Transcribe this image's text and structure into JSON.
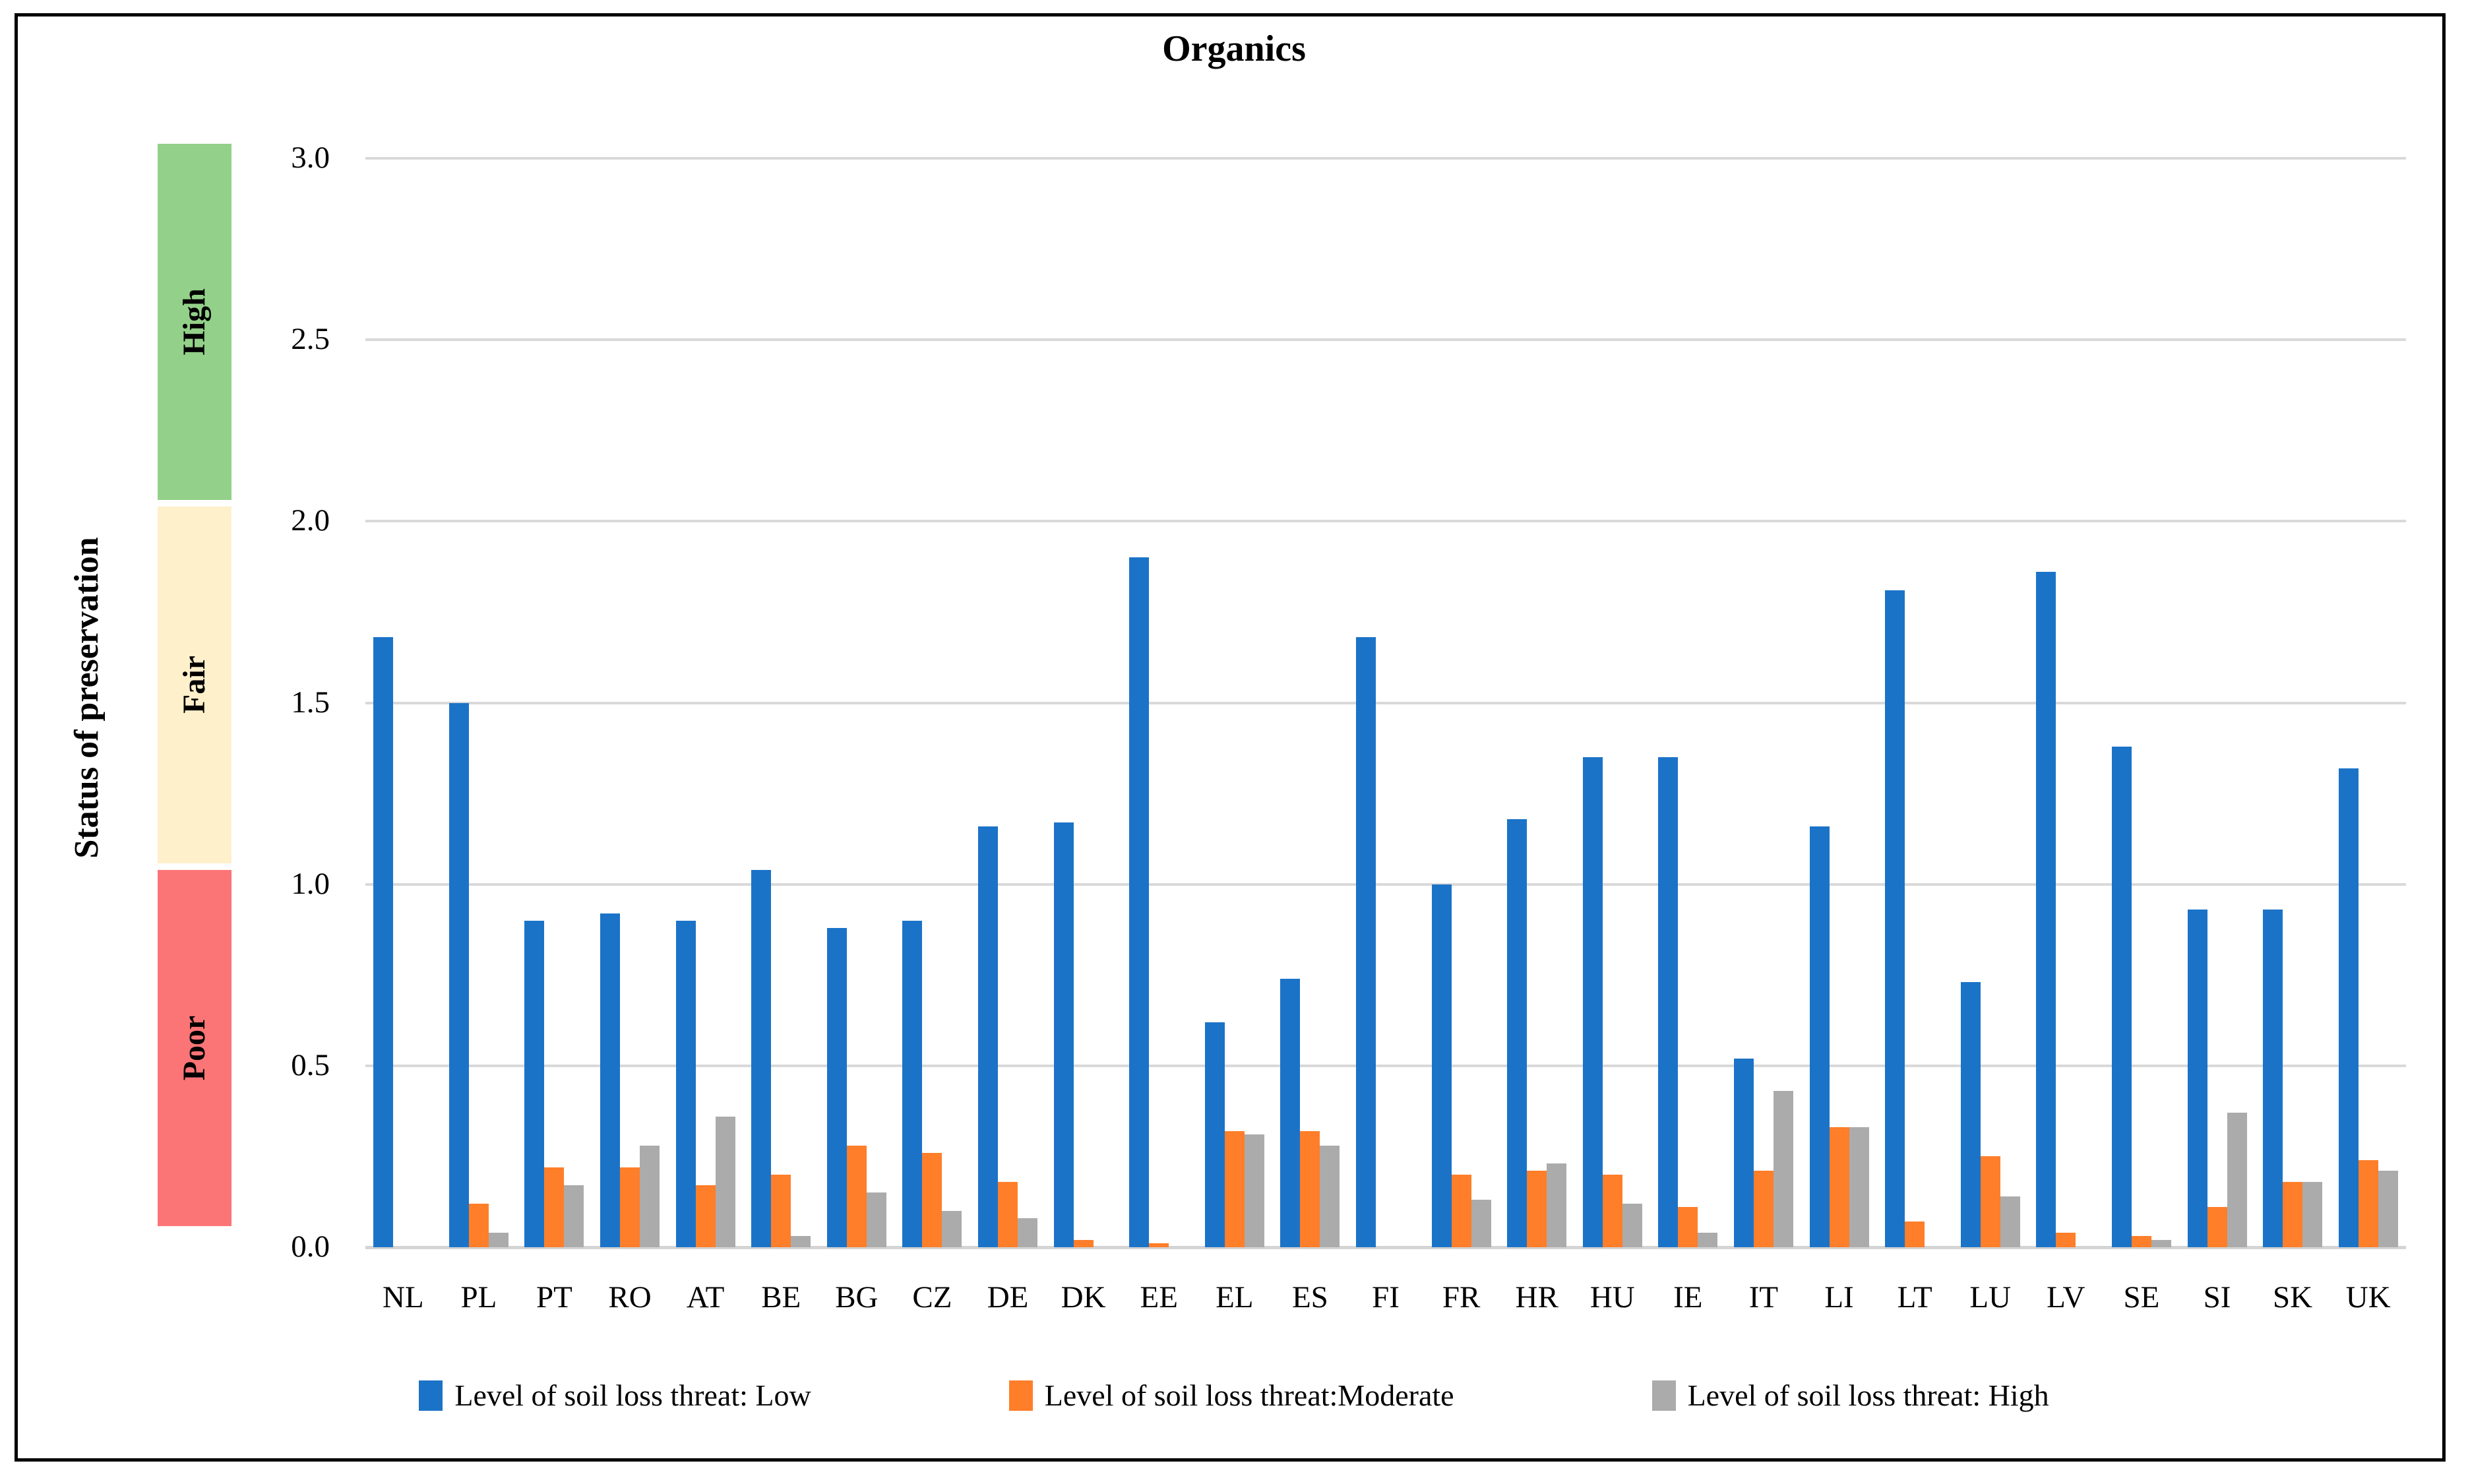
{
  "title": "Organics",
  "y_axis": {
    "label": "Status of preservation",
    "ticks": [
      "3.0",
      "2.5",
      "2.0",
      "1.5",
      "1.0",
      "0.5",
      "0.0"
    ],
    "bands": [
      {
        "label": "High",
        "color": "#93D089",
        "from": 2,
        "to": 3
      },
      {
        "label": "Fair",
        "color": "#FEF0CB",
        "from": 1,
        "to": 2
      },
      {
        "label": "Poor",
        "color": "#FC7576",
        "from": 0,
        "to": 1
      }
    ]
  },
  "chart_data": {
    "type": "bar",
    "title": "Organics",
    "xlabel": "",
    "ylabel": "Status of preservation",
    "ylim": [
      0,
      3
    ],
    "yticks": [
      3.0,
      2.5,
      2.0,
      1.5,
      1.0,
      0.5,
      0.0
    ],
    "grid": true,
    "legend_position": "bottom",
    "categories": [
      "NL",
      "PL",
      "PT",
      "RO",
      "AT",
      "BE",
      "BG",
      "CZ",
      "DE",
      "DK",
      "EE",
      "EL",
      "ES",
      "FI",
      "FR",
      "HR",
      "HU",
      "IE",
      "IT",
      "LI",
      "LT",
      "LU",
      "LV",
      "SE",
      "SI",
      "SK",
      "UK"
    ],
    "series": [
      {
        "name": "Level of soil loss threat: Low",
        "color": "#1B73C8",
        "values": [
          1.68,
          1.5,
          0.9,
          0.92,
          0.9,
          1.04,
          0.88,
          0.9,
          1.16,
          1.17,
          1.9,
          0.62,
          0.74,
          1.68,
          1.0,
          1.18,
          1.35,
          1.35,
          0.52,
          1.16,
          1.81,
          0.73,
          1.86,
          1.38,
          0.93,
          0.93,
          1.32
        ]
      },
      {
        "name": "Level of soil loss threat:Moderate",
        "color": "#FF7E29",
        "values": [
          0,
          0.12,
          0.22,
          0.22,
          0.17,
          0.2,
          0.28,
          0.26,
          0.18,
          0.02,
          0.01,
          0.32,
          0.32,
          0,
          0.2,
          0.21,
          0.2,
          0.11,
          0.21,
          0.33,
          0.07,
          0.25,
          0.04,
          0.03,
          0.11,
          0.18,
          0.24
        ]
      },
      {
        "name": "Level of soil loss threat: High",
        "color": "#ABABAB",
        "values": [
          0,
          0.04,
          0.17,
          0.28,
          0.36,
          0.03,
          0.15,
          0.1,
          0.08,
          0,
          0,
          0.31,
          0.28,
          0,
          0.13,
          0.23,
          0.12,
          0.04,
          0.43,
          0.33,
          0,
          0.14,
          0,
          0.02,
          0.37,
          0.18,
          0.21
        ]
      }
    ],
    "colors": {
      "low": "#1B73C8",
      "moderate": "#FF7E29",
      "high": "#ABABAB",
      "gridline": "#D9D9D9",
      "band_high": "#93D089",
      "band_fair": "#FEF0CB",
      "band_poor": "#FC7576"
    }
  }
}
